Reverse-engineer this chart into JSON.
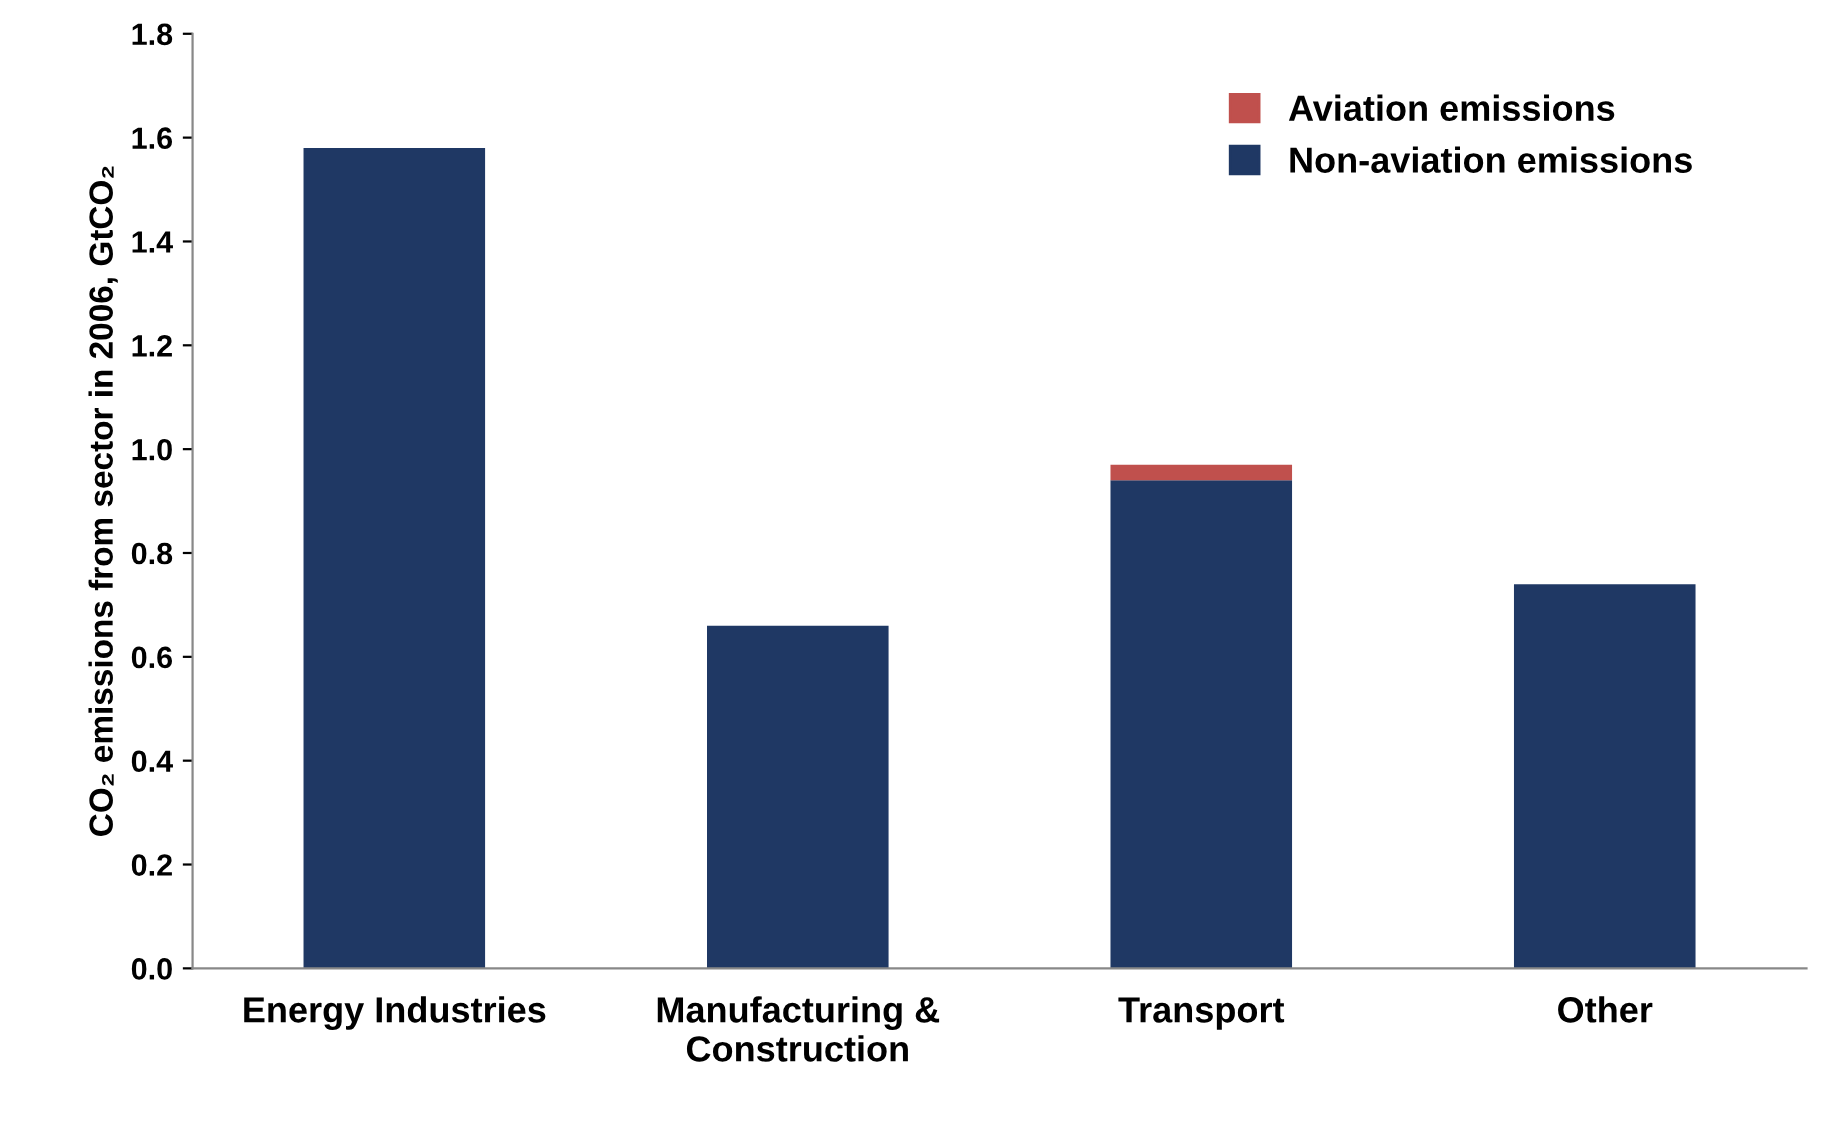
{
  "chart_data": {
    "type": "bar",
    "stacked": true,
    "ylabel": "CO₂ emissions from sector in 2006, GtCO₂",
    "categories": [
      "Energy Industries",
      "Manufacturing &\nConstruction",
      "Transport",
      "Other"
    ],
    "series": [
      {
        "name": "Non-aviation emissions",
        "color": "#1f3864",
        "values": [
          1.58,
          0.66,
          0.94,
          0.74
        ]
      },
      {
        "name": "Aviation emissions",
        "color": "#c0504d",
        "values": [
          null,
          null,
          0.03,
          null
        ]
      }
    ],
    "ylim": [
      0,
      1.8
    ],
    "yticks": [
      {
        "value": 0,
        "label": "0.0"
      },
      0.2,
      0.4,
      0.6,
      0.8,
      {
        "value": 1,
        "label": "1.0"
      },
      1.2,
      1.4,
      1.6,
      1.8
    ],
    "grid": false,
    "legend": "top right"
  }
}
